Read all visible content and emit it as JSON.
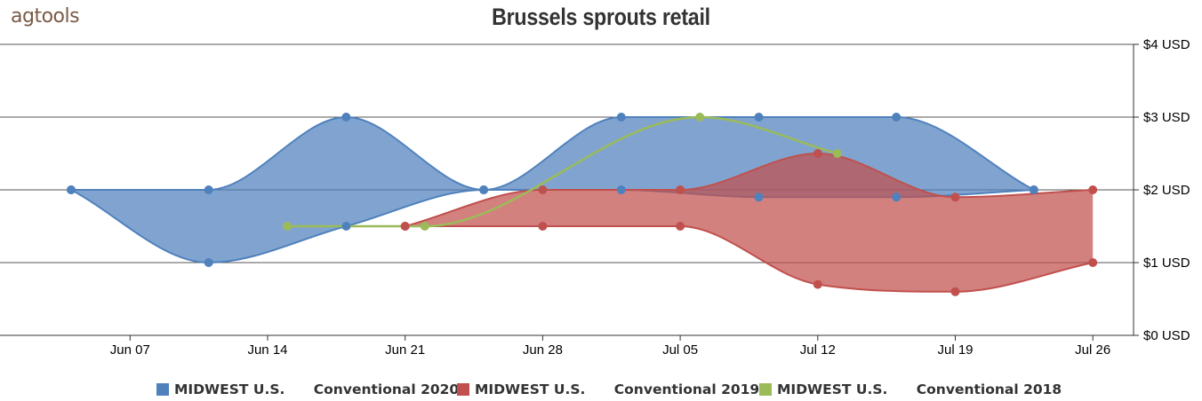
{
  "header": {
    "logo_text": "agtools",
    "title": "Brussels sprouts retail"
  },
  "colors": {
    "blue": "#4f81bd",
    "red": "#c0504d",
    "green": "#9bbb59",
    "axis": "#333333"
  },
  "chart_data": {
    "type": "area",
    "title": "Brussels sprouts retail",
    "y_axis": {
      "ticks": [
        "$0 USD",
        "$1 USD",
        "$2 USD",
        "$3 USD",
        "$4 USD"
      ],
      "range": [
        0,
        4
      ],
      "position": "right",
      "grid": true
    },
    "x_axis": {
      "ticks": [
        "Jun 07",
        "Jun 14",
        "Jun 21",
        "Jun 28",
        "Jul 05",
        "Jul 12",
        "Jul 19",
        "Jul 26"
      ]
    },
    "legend_position": "bottom",
    "series": [
      {
        "name": "MIDWEST U.S.      Conventional 2020",
        "kind": "range-area",
        "color": "#4f81bd",
        "x": [
          "2020-06-04",
          "2020-06-11",
          "2020-06-18",
          "2020-06-25",
          "2020-07-02",
          "2020-07-09",
          "2020-07-16",
          "2020-07-23"
        ],
        "high": [
          2,
          2,
          3,
          2,
          3,
          3,
          3,
          2
        ],
        "low": [
          2,
          1,
          1.5,
          2,
          2,
          1.9,
          1.9,
          2
        ]
      },
      {
        "name": "MIDWEST U.S.      Conventional 2019",
        "kind": "range-area",
        "color": "#c0504d",
        "x": [
          "2019-06-21",
          "2019-06-28",
          "2019-07-05",
          "2019-07-12",
          "2019-07-19",
          "2019-07-26"
        ],
        "high": [
          1.5,
          2,
          2,
          2.5,
          1.9,
          2
        ],
        "low": [
          1.5,
          1.5,
          1.5,
          0.7,
          0.6,
          1
        ]
      },
      {
        "name": "MIDWEST U.S.      Conventional 2018",
        "kind": "line",
        "color": "#9bbb59",
        "x": [
          "2018-06-15",
          "2018-06-22",
          "2018-07-06",
          "2018-07-13"
        ],
        "values": [
          1.5,
          1.5,
          3,
          2.5
        ]
      }
    ]
  }
}
